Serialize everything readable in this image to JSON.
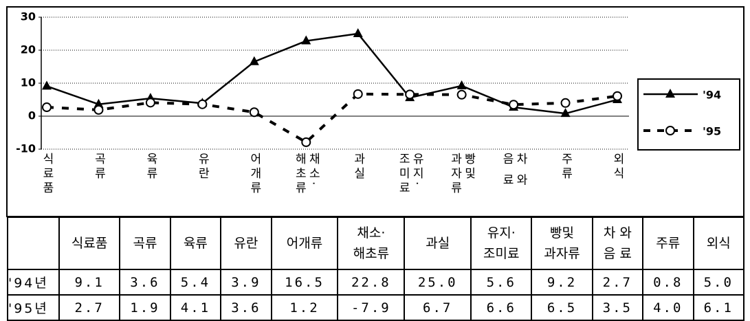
{
  "chart_data": {
    "type": "line",
    "categories": [
      "식료품",
      "곡류",
      "육류",
      "유란",
      "어개류",
      "채소·\n해초류",
      "과실",
      "유지·\n조미료",
      "빵및\n과자류",
      "차 와\n음 료",
      "주류",
      "외식"
    ],
    "series": [
      {
        "name": "'94",
        "color": "#000000",
        "row_label": "'94년",
        "dashed": false,
        "marker": "triangle",
        "values": [
          9.1,
          3.6,
          5.4,
          3.9,
          16.5,
          22.8,
          25.0,
          5.6,
          9.2,
          2.7,
          0.8,
          5.0
        ],
        "value_labels": [
          "9.1",
          "3.6",
          "5.4",
          "3.9",
          "16.5",
          "22.8",
          "25.0",
          "5.6",
          "9.2",
          "2.7",
          "0.8",
          "5.0"
        ]
      },
      {
        "name": "'95",
        "color": "#000000",
        "row_label": "'95년",
        "dashed": true,
        "marker": "circle",
        "values": [
          2.7,
          1.9,
          4.1,
          3.6,
          1.2,
          -7.9,
          6.7,
          6.6,
          6.5,
          3.5,
          4.0,
          6.1
        ],
        "value_labels": [
          "2.7",
          "1.9",
          "4.1",
          "3.6",
          "1.2",
          "-7.9",
          "6.7",
          "6.6",
          "6.5",
          "3.5",
          "4.0",
          "6.1"
        ]
      }
    ],
    "ylim": [
      -10,
      30
    ],
    "yticks": [
      -10,
      0,
      10,
      20,
      30
    ],
    "grid": true,
    "legend": "right"
  }
}
